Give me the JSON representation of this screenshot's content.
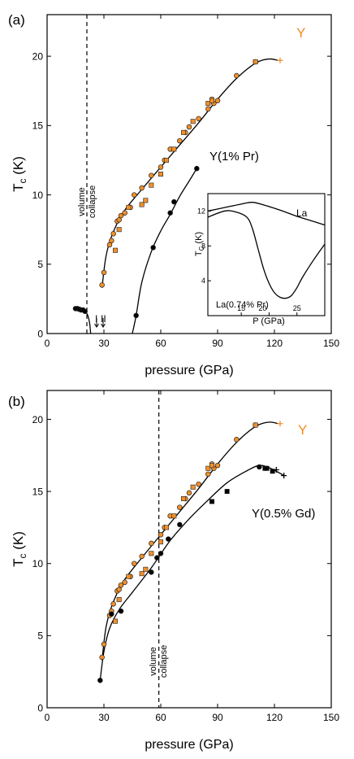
{
  "colors": {
    "orange": "#f0902a",
    "orange_text": "#f08c1e",
    "black": "#000000"
  },
  "chart_data": [
    {
      "type": "scatter",
      "panel_label": "(a)",
      "xlabel": "pressure (GPa)",
      "ylabel_main": "T",
      "ylabel_sub": "c",
      "ylabel_unit": " (K)",
      "xlim": [
        0,
        150
      ],
      "ylim": [
        0,
        23
      ],
      "xticks": [
        0,
        30,
        60,
        90,
        120,
        150
      ],
      "yticks": [
        0,
        5,
        10,
        15,
        20
      ],
      "annotations": {
        "volume_line_x": 21,
        "volume_text_1": "volume",
        "volume_text_2": "collapse",
        "roman_1": "I",
        "roman_2": "II"
      },
      "series": [
        {
          "name": "Y",
          "marker": "orange-circle",
          "points": [
            [
              29,
              3.5
            ],
            [
              30,
              4.4
            ],
            [
              33,
              6.4
            ],
            [
              34,
              6.7
            ],
            [
              35,
              7.2
            ],
            [
              37,
              8.1
            ],
            [
              38,
              8.2
            ],
            [
              39,
              8.5
            ],
            [
              41,
              8.7
            ],
            [
              44,
              9.1
            ],
            [
              46,
              10
            ],
            [
              50,
              10.5
            ],
            [
              55,
              11.4
            ],
            [
              60,
              12
            ],
            [
              62,
              12.5
            ],
            [
              65,
              13.3
            ],
            [
              70,
              13.9
            ],
            [
              73,
              14.5
            ],
            [
              75,
              14.9
            ],
            [
              80,
              15.5
            ],
            [
              85,
              16.2
            ],
            [
              87,
              16.9
            ],
            [
              88,
              16.6
            ],
            [
              90,
              16.8
            ],
            [
              100,
              18.6
            ],
            [
              110,
              19.6
            ]
          ]
        },
        {
          "name": "Y-squares",
          "marker": "orange-square",
          "points": [
            [
              36,
              6
            ],
            [
              38,
              7.5
            ],
            [
              43,
              9.1
            ],
            [
              50,
              9.3
            ],
            [
              52,
              9.6
            ],
            [
              55,
              10.7
            ],
            [
              60,
              11.5
            ],
            [
              63,
              12.5
            ],
            [
              67,
              13.3
            ],
            [
              72,
              14.5
            ],
            [
              77,
              15.3
            ],
            [
              85,
              16.6
            ],
            [
              87,
              16.8
            ],
            [
              110,
              19.6
            ]
          ]
        },
        {
          "name": "Y-cross",
          "marker": "orange-cross",
          "points": [
            [
              123,
              19.7
            ]
          ]
        },
        {
          "name": "Y(1% Pr)",
          "marker": "black-circle",
          "points": [
            [
              15,
              1.8
            ],
            [
              16,
              1.8
            ],
            [
              17,
              1.75
            ],
            [
              18,
              1.7
            ],
            [
              19,
              1.7
            ],
            [
              20,
              1.6
            ],
            [
              47,
              1.3
            ],
            [
              56,
              6.2
            ],
            [
              65,
              8.7
            ],
            [
              67,
              9.5
            ],
            [
              79,
              11.9
            ]
          ]
        }
      ],
      "curves": [
        {
          "name": "Y-fit",
          "points": [
            [
              29,
              3.3
            ],
            [
              31,
              5.5
            ],
            [
              34,
              7
            ],
            [
              40,
              8.7
            ],
            [
              50,
              10.4
            ],
            [
              60,
              12
            ],
            [
              70,
              13.6
            ],
            [
              80,
              15.2
            ],
            [
              90,
              16.9
            ],
            [
              100,
              18.4
            ],
            [
              110,
              19.5
            ],
            [
              117,
              19.8
            ],
            [
              122,
              19.7
            ]
          ]
        },
        {
          "name": "Pr-low-fit",
          "points": [
            [
              15,
              1.8
            ],
            [
              18,
              1.75
            ],
            [
              20,
              1.6
            ],
            [
              21.5,
              1.3
            ],
            [
              22.5,
              0.7
            ],
            [
              23,
              0
            ]
          ]
        },
        {
          "name": "Pr-high-fit",
          "points": [
            [
              45,
              0
            ],
            [
              47,
              1.3
            ],
            [
              50,
              3.7
            ],
            [
              55,
              5.9
            ],
            [
              60,
              7.4
            ],
            [
              65,
              8.6
            ],
            [
              70,
              9.9
            ],
            [
              75,
              11
            ],
            [
              79,
              11.9
            ]
          ]
        }
      ],
      "series_labels": [
        "Y",
        "Y(1% Pr)"
      ],
      "inset": {
        "xlabel": "P (GPa)",
        "ylabel_main": "T",
        "ylabel_sub": "C",
        "ylabel_unit": " (K)",
        "xlim": [
          9,
          30
        ],
        "ylim": [
          0,
          14
        ],
        "xticks": [
          15,
          20,
          25
        ],
        "yticks": [
          4,
          8,
          12
        ],
        "curve_labels": [
          "La",
          "La(0.74% Pr)"
        ],
        "curves": [
          {
            "name": "La",
            "points": [
              [
                9,
                12
              ],
              [
                12,
                12.4
              ],
              [
                15,
                12.8
              ],
              [
                17,
                13
              ],
              [
                19,
                12.7
              ],
              [
                22,
                12.1
              ],
              [
                25,
                11.4
              ],
              [
                28,
                10.8
              ],
              [
                30,
                10.4
              ]
            ]
          },
          {
            "name": "La(0.74% Pr)",
            "points": [
              [
                9,
                11.3
              ],
              [
                12,
                12
              ],
              [
                14,
                11.9
              ],
              [
                16,
                11.3
              ],
              [
                17,
                10
              ],
              [
                18,
                7.7
              ],
              [
                19,
                5.4
              ],
              [
                20,
                3.7
              ],
              [
                21,
                2.6
              ],
              [
                22,
                2.1
              ],
              [
                23,
                2
              ],
              [
                24,
                2.3
              ],
              [
                25,
                3.2
              ],
              [
                26,
                4.4
              ],
              [
                28,
                6.4
              ],
              [
                30,
                8.2
              ]
            ]
          }
        ]
      }
    },
    {
      "type": "scatter",
      "panel_label": "(b)",
      "xlabel": "pressure (GPa)",
      "ylabel_main": "T",
      "ylabel_sub": "c",
      "ylabel_unit": " (K)",
      "xlim": [
        0,
        150
      ],
      "ylim": [
        0,
        22
      ],
      "xticks": [
        0,
        30,
        60,
        90,
        120,
        150
      ],
      "yticks": [
        0,
        5,
        10,
        15,
        20
      ],
      "annotations": {
        "volume_line_x": 59,
        "volume_text_1": "volume",
        "volume_text_2": "collapse"
      },
      "series": [
        {
          "name": "Y",
          "marker": "orange-circle",
          "points": [
            [
              29,
              3.5
            ],
            [
              30,
              4.4
            ],
            [
              33,
              6.4
            ],
            [
              34,
              6.7
            ],
            [
              35,
              7.2
            ],
            [
              37,
              8.1
            ],
            [
              38,
              8.2
            ],
            [
              39,
              8.5
            ],
            [
              41,
              8.7
            ],
            [
              44,
              9.1
            ],
            [
              46,
              10
            ],
            [
              50,
              10.5
            ],
            [
              55,
              11.4
            ],
            [
              60,
              12
            ],
            [
              62,
              12.5
            ],
            [
              65,
              13.3
            ],
            [
              70,
              13.9
            ],
            [
              73,
              14.5
            ],
            [
              75,
              14.9
            ],
            [
              80,
              15.5
            ],
            [
              85,
              16.2
            ],
            [
              87,
              16.9
            ],
            [
              88,
              16.6
            ],
            [
              90,
              16.8
            ],
            [
              100,
              18.6
            ],
            [
              110,
              19.6
            ]
          ]
        },
        {
          "name": "Y-squares",
          "marker": "orange-square",
          "points": [
            [
              36,
              6
            ],
            [
              38,
              7.5
            ],
            [
              43,
              9.1
            ],
            [
              50,
              9.3
            ],
            [
              52,
              9.6
            ],
            [
              55,
              10.7
            ],
            [
              60,
              11.5
            ],
            [
              63,
              12.5
            ],
            [
              67,
              13.3
            ],
            [
              72,
              14.5
            ],
            [
              77,
              15.3
            ],
            [
              85,
              16.6
            ],
            [
              87,
              16.8
            ],
            [
              110,
              19.6
            ]
          ]
        },
        {
          "name": "Y-cross",
          "marker": "orange-cross",
          "points": [
            [
              123,
              19.7
            ]
          ]
        },
        {
          "name": "Y(0.5% Gd)",
          "marker": "black-circle",
          "points": [
            [
              28,
              1.9
            ],
            [
              34,
              6.5
            ],
            [
              39,
              6.7
            ],
            [
              55,
              9.4
            ],
            [
              58,
              10.4
            ],
            [
              60,
              10.7
            ],
            [
              64,
              11.7
            ],
            [
              70,
              12.7
            ],
            [
              112,
              16.7
            ]
          ]
        },
        {
          "name": "Gd-squares",
          "marker": "black-square",
          "points": [
            [
              87,
              14.3
            ],
            [
              95,
              15
            ],
            [
              115,
              16.6
            ],
            [
              116,
              16.6
            ],
            [
              119,
              16.4
            ]
          ]
        },
        {
          "name": "Gd-cross",
          "marker": "black-cross",
          "points": [
            [
              121,
              16.5
            ],
            [
              125,
              16.1
            ]
          ]
        }
      ],
      "curves": [
        {
          "name": "Y-fit",
          "points": [
            [
              29,
              3.3
            ],
            [
              31,
              5.5
            ],
            [
              34,
              7
            ],
            [
              40,
              8.7
            ],
            [
              50,
              10.4
            ],
            [
              60,
              12
            ],
            [
              70,
              13.6
            ],
            [
              80,
              15.2
            ],
            [
              90,
              16.9
            ],
            [
              100,
              18.4
            ],
            [
              110,
              19.5
            ],
            [
              117,
              19.8
            ],
            [
              122,
              19.7
            ]
          ]
        },
        {
          "name": "Gd-fit",
          "points": [
            [
              28,
              1.9
            ],
            [
              30,
              3.9
            ],
            [
              33,
              5.5
            ],
            [
              38,
              6.8
            ],
            [
              45,
              8
            ],
            [
              55,
              9.7
            ],
            [
              65,
              11.6
            ],
            [
              75,
              13.1
            ],
            [
              85,
              14.4
            ],
            [
              95,
              15.6
            ],
            [
              105,
              16.4
            ],
            [
              112,
              16.8
            ],
            [
              118,
              16.6
            ],
            [
              125,
              16.1
            ]
          ]
        }
      ],
      "series_labels": [
        "Y",
        "Y(0.5% Gd)"
      ]
    }
  ]
}
